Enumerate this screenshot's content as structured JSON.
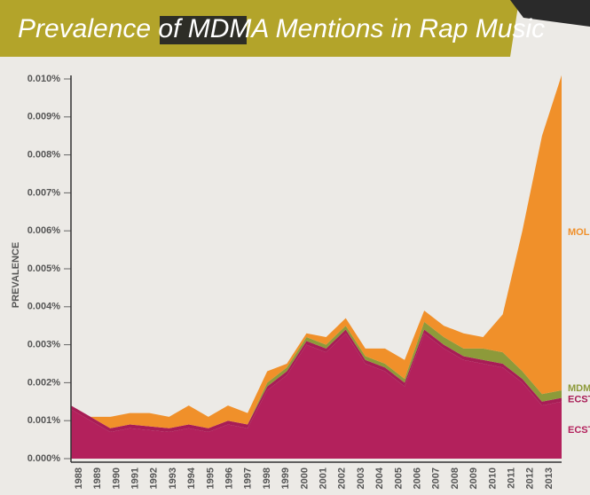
{
  "chart_data": {
    "type": "stacked-area",
    "title": "Prevalence of MDMA Mentions in Rap Music",
    "y_label": "PREVALENCE",
    "categories": [
      "1988",
      "1989",
      "1990",
      "1991",
      "1992",
      "1993",
      "1994",
      "1995",
      "1996",
      "1997",
      "1998",
      "1999",
      "2000",
      "2001",
      "2002",
      "2003",
      "2004",
      "2005",
      "2006",
      "2007",
      "2008",
      "2009",
      "2010",
      "2011",
      "2012",
      "2013"
    ],
    "series": [
      {
        "name": "ECST",
        "color": "#b3215c",
        "values": [
          0.0013,
          0.001,
          0.0007,
          0.0008,
          0.00075,
          0.0007,
          0.0008,
          0.0007,
          0.0009,
          0.0008,
          0.0018,
          0.0022,
          0.003,
          0.0028,
          0.0033,
          0.0025,
          0.0023,
          0.0019,
          0.0033,
          0.0029,
          0.0026,
          0.0025,
          0.0024,
          0.002,
          0.0014,
          0.0015
        ]
      },
      {
        "name": "ECST",
        "color": "#a81d56",
        "values": [
          0.0001,
          0.0001,
          0.0001,
          0.0001,
          0.0001,
          0.0001,
          0.0001,
          0.0001,
          0.0001,
          0.0001,
          0.0001,
          0.0001,
          0.0001,
          0.0001,
          0.0001,
          0.0001,
          0.0001,
          0.0001,
          0.0001,
          0.0001,
          0.0001,
          0.0001,
          0.0001,
          0.0001,
          0.0001,
          0.0001
        ]
      },
      {
        "name": "MDM",
        "color": "#8d9a3a",
        "values": [
          0,
          0,
          0,
          0,
          0,
          0,
          0,
          0,
          0,
          0,
          0.0001,
          0.0001,
          0.0001,
          0.0001,
          0.0001,
          0.0001,
          0.0001,
          0.0001,
          0.0002,
          0.0002,
          0.0002,
          0.0003,
          0.0003,
          0.0002,
          0.0002,
          0.0002
        ]
      },
      {
        "name": "MOL",
        "color": "#f0902a",
        "values": [
          0,
          0,
          0.0003,
          0.0003,
          0.00035,
          0.0003,
          0.0005,
          0.0003,
          0.0004,
          0.0003,
          0.0003,
          0.0001,
          0.0001,
          0.0002,
          0.0002,
          0.0002,
          0.0004,
          0.0005,
          0.0003,
          0.0003,
          0.0004,
          0.0003,
          0.001,
          0.0037,
          0.0068,
          0.0083
        ]
      }
    ],
    "ylim": [
      0,
      0.01
    ],
    "yticks": [
      {
        "value": 0,
        "label": "0.000%"
      },
      {
        "value": 0.001,
        "label": "0.001%"
      },
      {
        "value": 0.002,
        "label": "0.002%"
      },
      {
        "value": 0.003,
        "label": "0.003%"
      },
      {
        "value": 0.004,
        "label": "0.004%"
      },
      {
        "value": 0.005,
        "label": "0.005%"
      },
      {
        "value": 0.006,
        "label": "0.006%"
      },
      {
        "value": 0.007,
        "label": "0.007%"
      },
      {
        "value": 0.008,
        "label": "0.008%"
      },
      {
        "value": 0.009,
        "label": "0.009%"
      },
      {
        "value": 0.01,
        "label": "0.010%"
      }
    ]
  }
}
